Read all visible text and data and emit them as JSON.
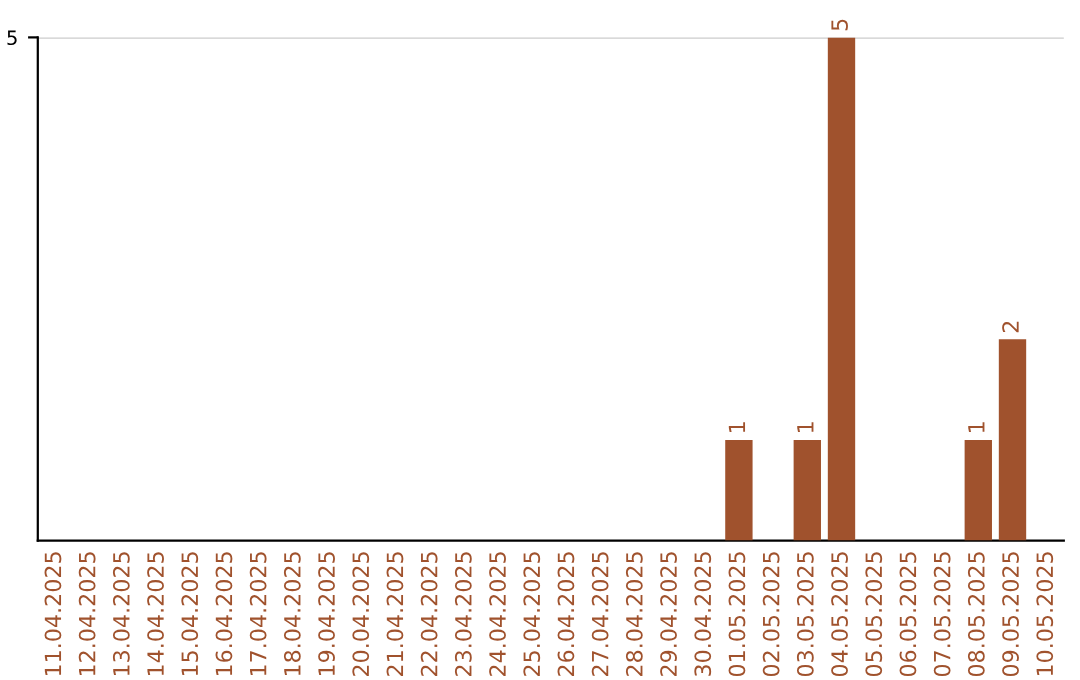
{
  "chart_data": {
    "type": "bar",
    "categories": [
      "11.04.2025",
      "12.04.2025",
      "13.04.2025",
      "14.04.2025",
      "15.04.2025",
      "16.04.2025",
      "17.04.2025",
      "18.04.2025",
      "19.04.2025",
      "20.04.2025",
      "21.04.2025",
      "22.04.2025",
      "23.04.2025",
      "24.04.2025",
      "25.04.2025",
      "26.04.2025",
      "27.04.2025",
      "28.04.2025",
      "29.04.2025",
      "30.04.2025",
      "01.05.2025",
      "02.05.2025",
      "03.05.2025",
      "04.05.2025",
      "05.05.2025",
      "06.05.2025",
      "07.05.2025",
      "08.05.2025",
      "09.05.2025",
      "10.05.2025"
    ],
    "values": [
      null,
      null,
      null,
      null,
      null,
      null,
      null,
      null,
      null,
      null,
      null,
      null,
      null,
      null,
      null,
      null,
      null,
      null,
      null,
      null,
      1,
      null,
      1,
      5,
      null,
      null,
      null,
      1,
      2,
      null
    ],
    "value_labels": [
      null,
      null,
      null,
      null,
      null,
      null,
      null,
      null,
      null,
      null,
      null,
      null,
      null,
      null,
      null,
      null,
      null,
      null,
      null,
      null,
      "1",
      null,
      "1",
      "5",
      null,
      null,
      null,
      "1",
      "2",
      null
    ],
    "color": "#a0522d",
    "ylim": [
      0,
      5
    ],
    "ref_lines": [
      {
        "axis": "y",
        "value": 5,
        "color": "#cccccc"
      }
    ],
    "annotations": [
      "5"
    ]
  }
}
